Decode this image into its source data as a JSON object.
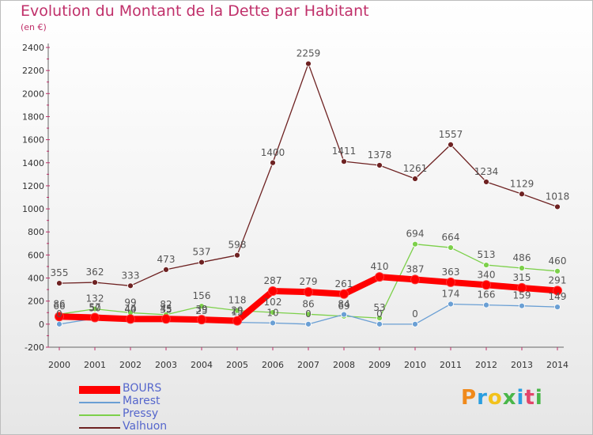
{
  "title": "Evolution du Montant de la Dette par Habitant",
  "subtitle": "(en €)",
  "brand": "Proxiti",
  "chart_data": {
    "type": "line",
    "x": [
      "2000",
      "2001",
      "2002",
      "2003",
      "2004",
      "2005",
      "2006",
      "2007",
      "2008",
      "2009",
      "2010",
      "2011",
      "2012",
      "2013",
      "2014"
    ],
    "ylim": [
      -200,
      2400
    ],
    "yticks": [
      -200,
      0,
      200,
      400,
      600,
      800,
      1000,
      1200,
      1400,
      1600,
      1800,
      2000,
      2200,
      2400
    ],
    "grid": false,
    "legend_position": "bottom-left",
    "series": [
      {
        "name": "BOURS",
        "color": "#ff0000",
        "values": [
          66,
          57,
          44,
          45,
          39,
          29,
          287,
          279,
          261,
          410,
          387,
          363,
          340,
          315,
          291
        ]
      },
      {
        "name": "Marest",
        "color": "#6a9fd4",
        "values": [
          0,
          50,
          40,
          35,
          25,
          15,
          10,
          0,
          84,
          0,
          0,
          174,
          166,
          159,
          149
        ]
      },
      {
        "name": "Pressy",
        "color": "#7cd04a",
        "values": [
          86,
          132,
          99,
          82,
          156,
          118,
          102,
          86,
          69,
          53,
          694,
          664,
          513,
          486,
          460
        ]
      },
      {
        "name": "Valhuon",
        "color": "#6e2222",
        "values": [
          355,
          362,
          333,
          473,
          537,
          598,
          1400,
          2259,
          1411,
          1378,
          1261,
          1557,
          1234,
          1129,
          1018
        ]
      }
    ]
  }
}
